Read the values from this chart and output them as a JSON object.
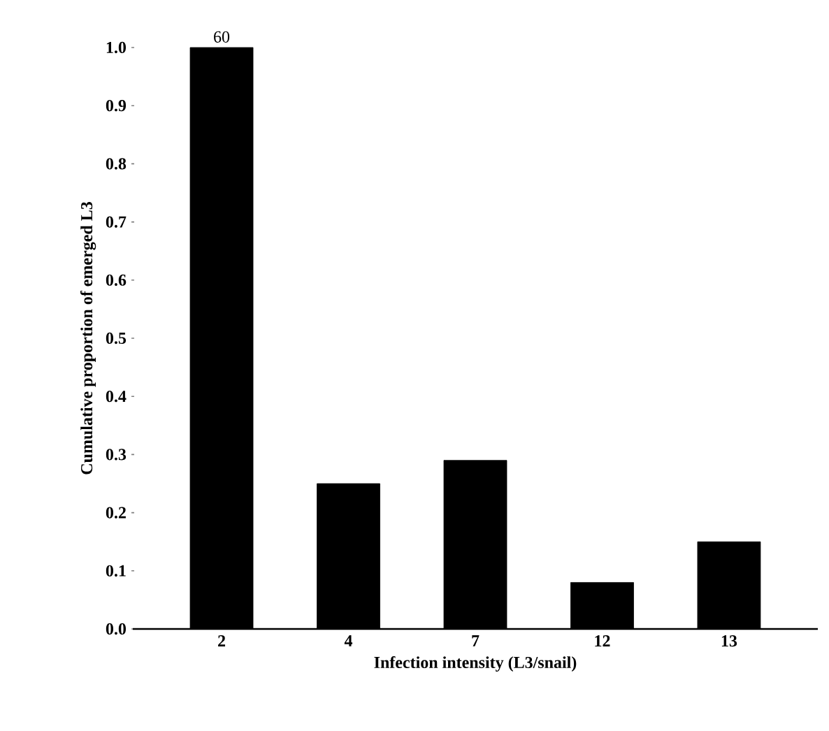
{
  "chart_data": {
    "type": "bar",
    "xlabel": "Infection intensity (L3/snail)",
    "ylabel": "Cumulative proportion of emerged L3",
    "categories": [
      "2",
      "4",
      "7",
      "12",
      "13"
    ],
    "values": [
      1.0,
      0.25,
      0.29,
      0.08,
      0.15
    ],
    "color": "#000000",
    "ylim": [
      0,
      1.0
    ],
    "yticks": [
      {
        "value": 0,
        "label": "0.0"
      },
      0.1,
      0.2,
      0.3,
      0.4,
      0.5,
      0.6,
      0.7,
      0.8,
      0.9,
      {
        "value": 1,
        "label": "1.0"
      }
    ],
    "annotations": [
      {
        "text": "60",
        "x": "2",
        "y": 1.0
      }
    ],
    "grid": false
  }
}
